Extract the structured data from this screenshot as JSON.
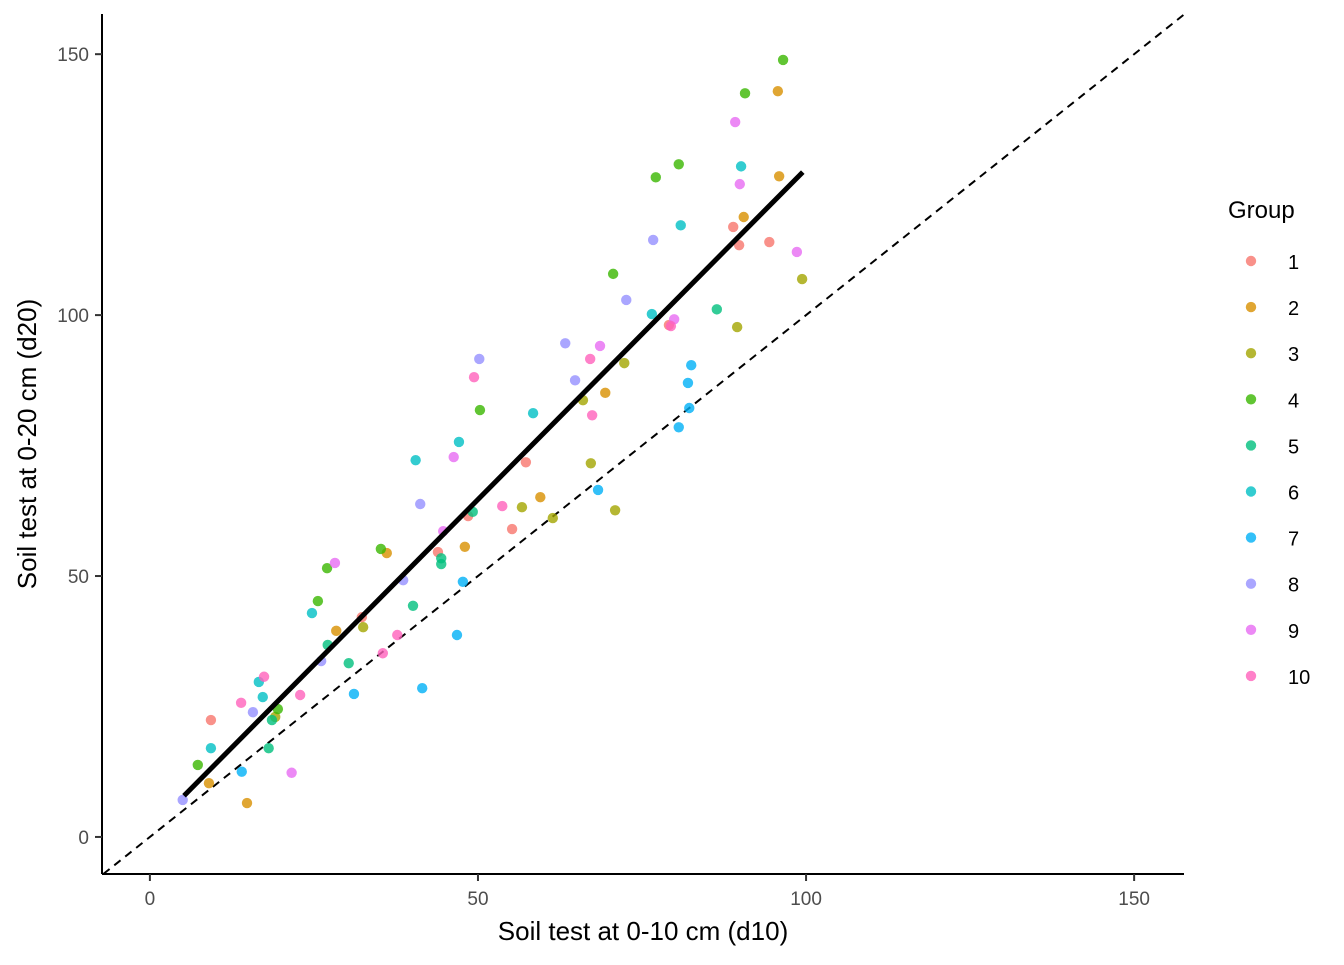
{
  "chart_data": {
    "type": "scatter",
    "title": "",
    "xlabel": "Soil test at 0-10 cm (d10)",
    "ylabel": "Soil test at 0-20 cm (d20)",
    "xlim": [
      -7.3,
      157.6
    ],
    "ylim": [
      -7.1,
      157.7
    ],
    "xticks": [
      0,
      50,
      100,
      150
    ],
    "yticks": [
      0,
      50,
      100,
      150
    ],
    "xtick_labels": [
      "0",
      "50",
      "100",
      "150"
    ],
    "ytick_labels": [
      "0",
      "50",
      "100",
      "150"
    ],
    "grid": false,
    "legend": {
      "title": "Group",
      "placement": "right"
    },
    "reference_line": {
      "type": "identity",
      "style": "dashed",
      "color": "#000000"
    },
    "fit_line": {
      "x": [
        5.2,
        99.5
      ],
      "y": [
        7.9,
        127.4
      ],
      "color": "#000000"
    },
    "series": [
      {
        "name": "1",
        "color": "#F8766D",
        "points": [
          [
            9.3,
            22.4
          ],
          [
            32.3,
            42.1
          ],
          [
            43.9,
            54.6
          ],
          [
            48.5,
            61.5
          ],
          [
            55.2,
            59.0
          ],
          [
            57.3,
            71.8
          ],
          [
            79.1,
            98.1
          ],
          [
            88.9,
            116.9
          ],
          [
            89.8,
            113.4
          ],
          [
            94.4,
            114.0
          ]
        ]
      },
      {
        "name": "2",
        "color": "#D89000",
        "points": [
          [
            9.0,
            10.3
          ],
          [
            14.8,
            6.5
          ],
          [
            28.4,
            39.5
          ],
          [
            36.1,
            54.4
          ],
          [
            48.0,
            55.6
          ],
          [
            59.5,
            65.1
          ],
          [
            69.4,
            85.1
          ],
          [
            90.5,
            118.8
          ],
          [
            95.9,
            126.6
          ],
          [
            95.7,
            142.9
          ]
        ]
      },
      {
        "name": "3",
        "color": "#A3A500",
        "points": [
          [
            19.1,
            23.0
          ],
          [
            32.5,
            40.2
          ],
          [
            56.7,
            63.2
          ],
          [
            61.4,
            61.1
          ],
          [
            66.0,
            83.7
          ],
          [
            67.2,
            71.6
          ],
          [
            70.9,
            62.6
          ],
          [
            72.3,
            90.8
          ],
          [
            89.5,
            97.7
          ],
          [
            99.4,
            106.9
          ]
        ]
      },
      {
        "name": "4",
        "color": "#39B600",
        "points": [
          [
            7.3,
            13.8
          ],
          [
            19.5,
            24.5
          ],
          [
            25.6,
            45.2
          ],
          [
            27.0,
            51.5
          ],
          [
            35.2,
            55.2
          ],
          [
            50.3,
            81.8
          ],
          [
            70.6,
            107.9
          ],
          [
            77.1,
            126.4
          ],
          [
            80.6,
            128.9
          ],
          [
            90.7,
            142.5
          ],
          [
            96.5,
            148.9
          ]
        ]
      },
      {
        "name": "5",
        "color": "#00BF7D",
        "points": [
          [
            18.1,
            17.0
          ],
          [
            18.6,
            22.4
          ],
          [
            27.1,
            36.8
          ],
          [
            30.3,
            33.3
          ],
          [
            40.1,
            44.3
          ],
          [
            44.4,
            52.3
          ],
          [
            44.4,
            53.4
          ],
          [
            49.2,
            62.3
          ],
          [
            86.4,
            101.1
          ]
        ]
      },
      {
        "name": "6",
        "color": "#00BFC4",
        "points": [
          [
            9.3,
            17.0
          ],
          [
            16.6,
            29.7
          ],
          [
            17.2,
            26.8
          ],
          [
            24.7,
            42.9
          ],
          [
            40.5,
            72.2
          ],
          [
            47.1,
            75.7
          ],
          [
            58.4,
            81.2
          ],
          [
            76.5,
            100.2
          ],
          [
            80.9,
            117.2
          ],
          [
            90.1,
            128.5
          ]
        ]
      },
      {
        "name": "7",
        "color": "#00B0F6",
        "points": [
          [
            14.0,
            12.5
          ],
          [
            31.1,
            27.4
          ],
          [
            41.5,
            28.5
          ],
          [
            46.8,
            38.7
          ],
          [
            47.7,
            48.9
          ],
          [
            68.3,
            66.5
          ],
          [
            80.6,
            78.5
          ],
          [
            82.0,
            87.0
          ],
          [
            82.2,
            82.2
          ],
          [
            82.5,
            90.4
          ]
        ]
      },
      {
        "name": "8",
        "color": "#9590FF",
        "points": [
          [
            5.0,
            7.1
          ],
          [
            15.7,
            23.9
          ],
          [
            26.1,
            33.7
          ],
          [
            38.6,
            49.2
          ],
          [
            41.2,
            63.8
          ],
          [
            50.2,
            91.6
          ],
          [
            63.3,
            94.6
          ],
          [
            64.8,
            87.5
          ],
          [
            72.6,
            102.9
          ],
          [
            76.7,
            114.4
          ]
        ]
      },
      {
        "name": "9",
        "color": "#E76BF3",
        "points": [
          [
            21.6,
            12.3
          ],
          [
            28.2,
            52.5
          ],
          [
            44.7,
            58.6
          ],
          [
            46.3,
            72.8
          ],
          [
            68.6,
            94.1
          ],
          [
            79.9,
            99.2
          ],
          [
            89.2,
            137.0
          ],
          [
            89.9,
            125.1
          ],
          [
            98.6,
            112.1
          ]
        ]
      },
      {
        "name": "10",
        "color": "#FF62BC",
        "points": [
          [
            13.9,
            25.7
          ],
          [
            17.4,
            30.7
          ],
          [
            22.9,
            27.2
          ],
          [
            35.5,
            35.2
          ],
          [
            37.7,
            38.7
          ],
          [
            49.4,
            88.1
          ],
          [
            53.7,
            63.4
          ],
          [
            67.1,
            91.6
          ],
          [
            67.4,
            80.8
          ],
          [
            79.4,
            97.9
          ]
        ]
      }
    ]
  }
}
